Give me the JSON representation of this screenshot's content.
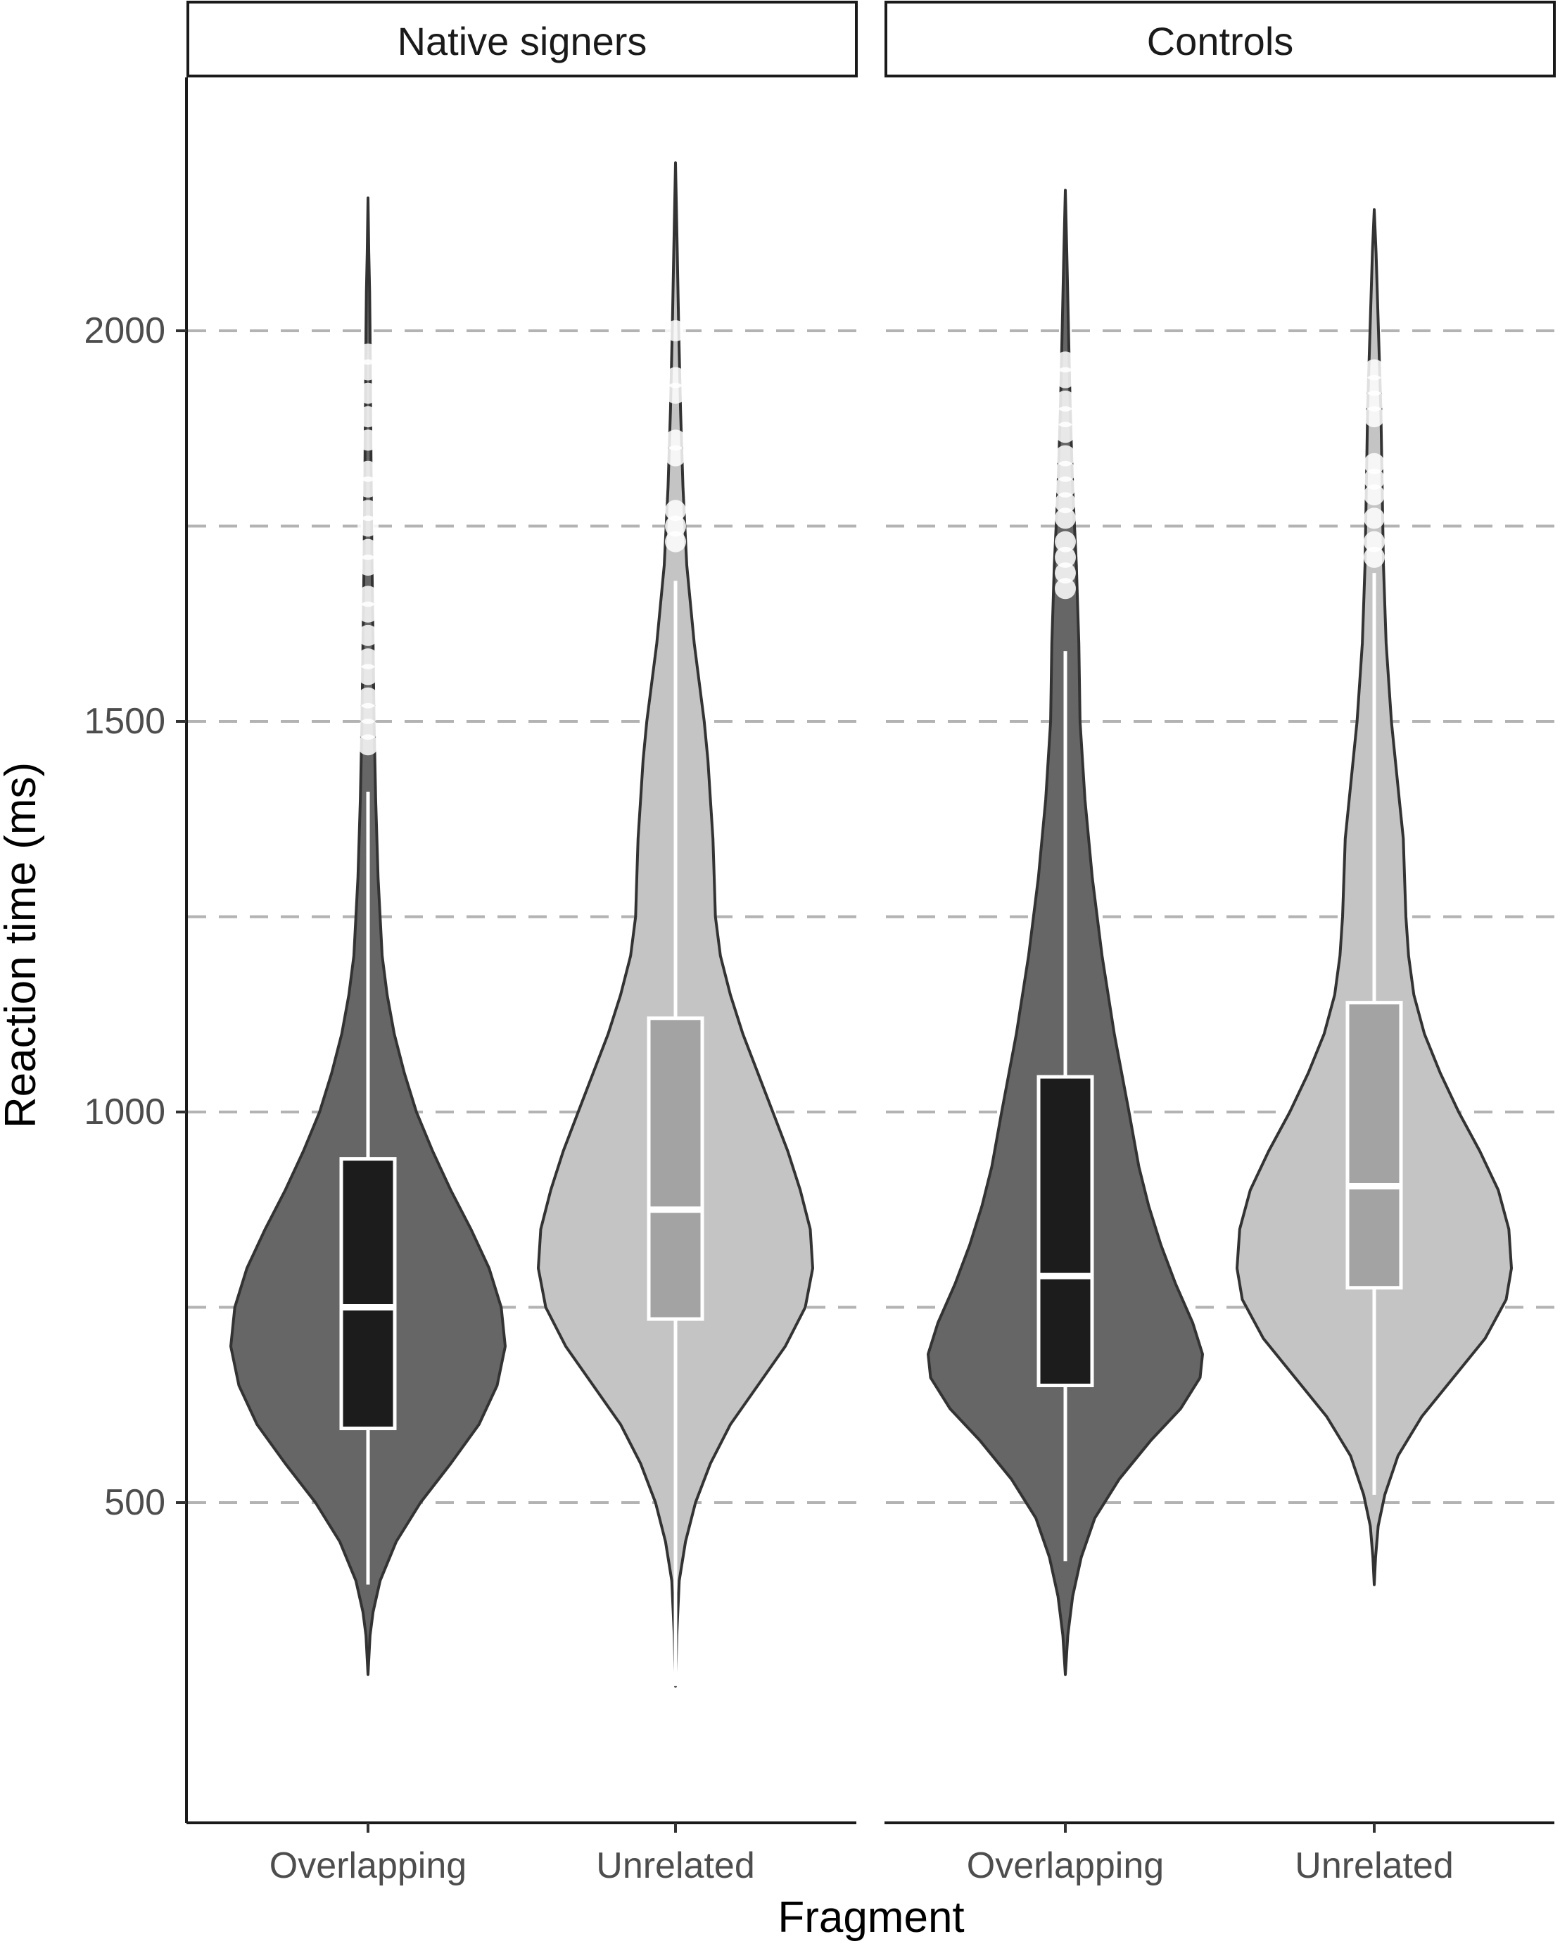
{
  "chart_data": {
    "type": "violin",
    "xlabel": "Fragment",
    "ylabel": "Reaction time (ms)",
    "ylim": [
      150,
      2400
    ],
    "yticks": [
      500,
      1000,
      1500,
      2000
    ],
    "ytick_labels": [
      "500",
      "1000",
      "1500",
      "2000"
    ],
    "grid_dashed_y": [
      500,
      750,
      1000,
      1250,
      1500,
      1750,
      2000
    ],
    "categories": [
      "Overlapping",
      "Unrelated"
    ],
    "colors": {
      "Overlapping": {
        "violin": "#666666",
        "box": "#1c1c1c"
      },
      "Unrelated": {
        "violin": "#c4c4c4",
        "box": "#a3a3a3"
      },
      "outline": "#333333",
      "whisker": "#ffffff",
      "outlier": "#ffffff",
      "grid": "#b3b3b3"
    },
    "panels": [
      {
        "strip": "Native signers",
        "groups": [
          {
            "category": "Overlapping",
            "violin_range": [
              280,
              2170
            ],
            "density": [
              [
                280,
                0.0
              ],
              [
                330,
                0.01
              ],
              [
                360,
                0.025
              ],
              [
                400,
                0.06
              ],
              [
                450,
                0.14
              ],
              [
                500,
                0.26
              ],
              [
                550,
                0.41
              ],
              [
                600,
                0.55
              ],
              [
                650,
                0.64
              ],
              [
                700,
                0.68
              ],
              [
                750,
                0.66
              ],
              [
                800,
                0.6
              ],
              [
                850,
                0.51
              ],
              [
                900,
                0.41
              ],
              [
                950,
                0.32
              ],
              [
                1000,
                0.24
              ],
              [
                1050,
                0.18
              ],
              [
                1100,
                0.13
              ],
              [
                1150,
                0.095
              ],
              [
                1200,
                0.07
              ],
              [
                1300,
                0.05
              ],
              [
                1400,
                0.038
              ],
              [
                1500,
                0.03
              ],
              [
                1600,
                0.025
              ],
              [
                1700,
                0.02
              ],
              [
                1800,
                0.016
              ],
              [
                1900,
                0.013
              ],
              [
                2000,
                0.01
              ],
              [
                2050,
                0.008
              ],
              [
                2100,
                0.004
              ],
              [
                2170,
                0.0
              ]
            ],
            "box": {
              "q1": 595,
              "median": 750,
              "q3": 940,
              "whisker_low": 395,
              "whisker_high": 1410
            },
            "outliers": [
              1470,
              1490,
              1510,
              1530,
              1560,
              1580,
              1610,
              1640,
              1660,
              1700,
              1720,
              1750,
              1770,
              1800,
              1820,
              1860,
              1890,
              1920,
              1950,
              1970
            ]
          },
          {
            "category": "Unrelated",
            "violin_range": [
              265,
              2215
            ],
            "density": [
              [
                265,
                0.0
              ],
              [
                330,
                0.005
              ],
              [
                400,
                0.015
              ],
              [
                450,
                0.04
              ],
              [
                500,
                0.08
              ],
              [
                550,
                0.14
              ],
              [
                600,
                0.22
              ],
              [
                650,
                0.33
              ],
              [
                700,
                0.44
              ],
              [
                750,
                0.52
              ],
              [
                800,
                0.55
              ],
              [
                850,
                0.54
              ],
              [
                900,
                0.5
              ],
              [
                950,
                0.45
              ],
              [
                1000,
                0.39
              ],
              [
                1050,
                0.33
              ],
              [
                1100,
                0.27
              ],
              [
                1150,
                0.22
              ],
              [
                1200,
                0.18
              ],
              [
                1250,
                0.16
              ],
              [
                1300,
                0.155
              ],
              [
                1350,
                0.15
              ],
              [
                1400,
                0.14
              ],
              [
                1450,
                0.13
              ],
              [
                1500,
                0.115
              ],
              [
                1550,
                0.095
              ],
              [
                1600,
                0.075
              ],
              [
                1700,
                0.045
              ],
              [
                1800,
                0.03
              ],
              [
                1900,
                0.02
              ],
              [
                2000,
                0.013
              ],
              [
                2100,
                0.007
              ],
              [
                2215,
                0.0
              ]
            ],
            "box": {
              "q1": 735,
              "median": 875,
              "q3": 1120,
              "whisker_low": 265,
              "whisker_high": 1680
            },
            "outliers": [
              1730,
              1750,
              1770,
              1840,
              1860,
              1920,
              1940,
              2000
            ]
          }
        ]
      },
      {
        "strip": "Controls",
        "groups": [
          {
            "category": "Overlapping",
            "violin_range": [
              280,
              2180
            ],
            "density": [
              [
                280,
                0.0
              ],
              [
                330,
                0.01
              ],
              [
                380,
                0.03
              ],
              [
                430,
                0.065
              ],
              [
                480,
                0.12
              ],
              [
                530,
                0.22
              ],
              [
                580,
                0.35
              ],
              [
                620,
                0.47
              ],
              [
                660,
                0.55
              ],
              [
                690,
                0.56
              ],
              [
                730,
                0.52
              ],
              [
                780,
                0.45
              ],
              [
                830,
                0.39
              ],
              [
                880,
                0.34
              ],
              [
                930,
                0.3
              ],
              [
                1000,
                0.26
              ],
              [
                1100,
                0.2
              ],
              [
                1200,
                0.15
              ],
              [
                1300,
                0.11
              ],
              [
                1400,
                0.08
              ],
              [
                1500,
                0.06
              ],
              [
                1600,
                0.055
              ],
              [
                1650,
                0.05
              ],
              [
                1700,
                0.045
              ],
              [
                1800,
                0.03
              ],
              [
                1900,
                0.02
              ],
              [
                2000,
                0.013
              ],
              [
                2100,
                0.006
              ],
              [
                2180,
                0.0
              ]
            ],
            "box": {
              "q1": 650,
              "median": 790,
              "q3": 1045,
              "whisker_low": 425,
              "whisker_high": 1590
            },
            "outliers": [
              1670,
              1690,
              1710,
              1730,
              1760,
              1780,
              1800,
              1820,
              1840,
              1870,
              1890,
              1910,
              1940,
              1960
            ]
          },
          {
            "category": "Unrelated",
            "violin_range": [
              395,
              2155
            ],
            "density": [
              [
                395,
                0.0
              ],
              [
                430,
                0.005
              ],
              [
                470,
                0.015
              ],
              [
                510,
                0.04
              ],
              [
                560,
                0.09
              ],
              [
                610,
                0.18
              ],
              [
                660,
                0.3
              ],
              [
                710,
                0.42
              ],
              [
                760,
                0.5
              ],
              [
                800,
                0.52
              ],
              [
                850,
                0.51
              ],
              [
                900,
                0.47
              ],
              [
                950,
                0.4
              ],
              [
                1000,
                0.32
              ],
              [
                1050,
                0.25
              ],
              [
                1100,
                0.19
              ],
              [
                1150,
                0.15
              ],
              [
                1200,
                0.13
              ],
              [
                1250,
                0.12
              ],
              [
                1300,
                0.115
              ],
              [
                1350,
                0.11
              ],
              [
                1400,
                0.095
              ],
              [
                1450,
                0.08
              ],
              [
                1500,
                0.065
              ],
              [
                1600,
                0.045
              ],
              [
                1700,
                0.035
              ],
              [
                1800,
                0.03
              ],
              [
                1900,
                0.025
              ],
              [
                2000,
                0.016
              ],
              [
                2100,
                0.007
              ],
              [
                2155,
                0.0
              ]
            ],
            "box": {
              "q1": 775,
              "median": 905,
              "q3": 1140,
              "whisker_low": 510,
              "whisker_high": 1690
            },
            "outliers": [
              1710,
              1730,
              1760,
              1790,
              1810,
              1830,
              1890,
              1910,
              1930,
              1950
            ]
          }
        ]
      }
    ]
  }
}
